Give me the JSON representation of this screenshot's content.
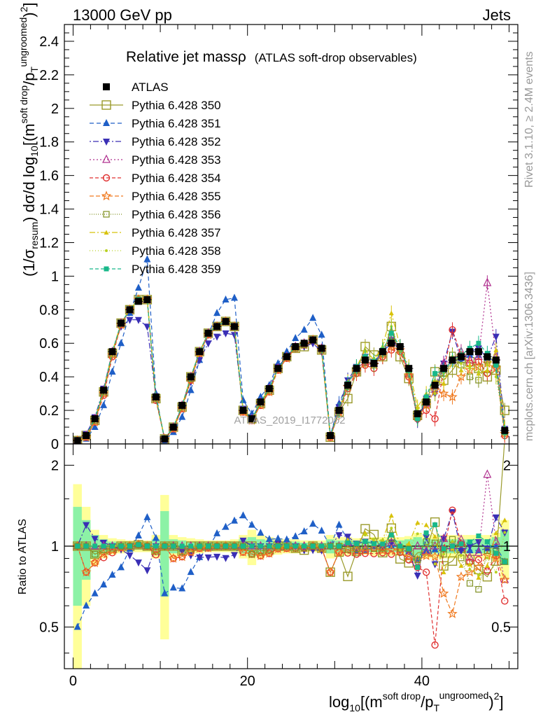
{
  "header": {
    "left": "13000 GeV pp",
    "right": "Jets"
  },
  "side_labels": {
    "rivet": "Rivet 3.1.10, ≥ 2.4M events",
    "mcplots": "mcplots.cern.ch [arXiv:1306.3436]"
  },
  "watermark": "ATLAS_2019_I1772062",
  "chart_data": [
    {
      "type": "line",
      "title": "Relative jet massρ",
      "subtitle": "(ATLAS soft-drop observables)",
      "ylabel_html": "(1/σresum) dσ/d log10[(m soft drop / pT ungroomed)2]",
      "xlim": [
        -1,
        51
      ],
      "ylim": [
        0,
        2.5
      ],
      "yticks": [
        0,
        0.2,
        0.4,
        0.6,
        0.8,
        1,
        1.2,
        1.4,
        1.6,
        1.8,
        2,
        2.2,
        2.4
      ],
      "ytick_labels": [
        "0",
        "0.2",
        "0.4",
        "0.6",
        "0.8",
        "1",
        "1.2",
        "1.4",
        "1.6",
        "1.8",
        "2",
        "2.2",
        "2.4"
      ],
      "legend_position": "top-left",
      "x": [
        0.5,
        1.5,
        2.5,
        3.5,
        4.5,
        5.5,
        6.5,
        7.5,
        8.5,
        9.5,
        10.5,
        11.5,
        12.5,
        13.5,
        14.5,
        15.5,
        16.5,
        17.5,
        18.5,
        19.5,
        20.5,
        21.5,
        22.5,
        23.5,
        24.5,
        25.5,
        26.5,
        27.5,
        28.5,
        29.5,
        30.5,
        31.5,
        32.5,
        33.5,
        34.5,
        35.5,
        36.5,
        37.5,
        38.5,
        39.5,
        40.5,
        41.5,
        42.5,
        43.5,
        44.5,
        45.5,
        46.5,
        47.5,
        48.5,
        49.5
      ],
      "series": [
        {
          "name": "ATLAS",
          "color": "#000000",
          "marker": "square-filled",
          "dash": "none",
          "values": [
            0.02,
            0.05,
            0.15,
            0.32,
            0.55,
            0.72,
            0.8,
            0.85,
            0.86,
            0.28,
            0.03,
            0.1,
            0.23,
            0.4,
            0.55,
            0.66,
            0.7,
            0.73,
            0.7,
            0.2,
            0.15,
            0.25,
            0.33,
            0.45,
            0.52,
            0.58,
            0.6,
            0.62,
            0.57,
            0.05,
            0.2,
            0.35,
            0.45,
            0.5,
            0.48,
            0.55,
            0.6,
            0.58,
            0.45,
            0.18,
            0.25,
            0.35,
            0.45,
            0.5,
            0.52,
            0.55,
            0.55,
            0.52,
            0.5,
            0.08
          ]
        },
        {
          "name": "Pythia 6.428 350",
          "color": "#9a9a2b",
          "marker": "square-open",
          "dash": "none",
          "values": [
            0.02,
            0.05,
            0.14,
            0.31,
            0.54,
            0.72,
            0.8,
            0.86,
            0.86,
            0.27,
            0.03,
            0.1,
            0.22,
            0.4,
            0.55,
            0.66,
            0.7,
            0.73,
            0.7,
            0.2,
            0.15,
            0.24,
            0.32,
            0.45,
            0.52,
            0.57,
            0.58,
            0.62,
            0.56,
            0.04,
            0.19,
            0.27,
            0.43,
            0.58,
            0.53,
            0.52,
            0.7,
            0.52,
            0.39,
            0.17,
            0.24,
            0.43,
            0.38,
            0.44,
            0.51,
            0.49,
            0.45,
            0.4,
            0.44,
            0.2
          ]
        },
        {
          "name": "Pythia 6.428 351",
          "color": "#1f5fc7",
          "marker": "triangle-filled",
          "dash": "6,4",
          "values": [
            0.01,
            0.03,
            0.1,
            0.23,
            0.43,
            0.6,
            0.78,
            0.93,
            1.1,
            0.3,
            0.02,
            0.07,
            0.16,
            0.32,
            0.5,
            0.65,
            0.78,
            0.86,
            0.87,
            0.26,
            0.18,
            0.28,
            0.35,
            0.48,
            0.55,
            0.63,
            0.68,
            0.75,
            0.65,
            0.05,
            0.24,
            0.37,
            0.43,
            0.48,
            0.48,
            0.55,
            0.6,
            0.58,
            0.43,
            0.16,
            0.24,
            0.34,
            0.44,
            0.49,
            0.51,
            0.53,
            0.53,
            0.51,
            0.5,
            0.07
          ]
        },
        {
          "name": "Pythia 6.428 352",
          "color": "#3a2fb5",
          "marker": "triangle-down-filled",
          "dash": "2,3,8,3",
          "values": [
            0.02,
            0.06,
            0.16,
            0.33,
            0.55,
            0.7,
            0.74,
            0.74,
            0.7,
            0.28,
            0.03,
            0.1,
            0.22,
            0.37,
            0.5,
            0.6,
            0.64,
            0.66,
            0.65,
            0.21,
            0.15,
            0.25,
            0.33,
            0.46,
            0.52,
            0.58,
            0.58,
            0.6,
            0.55,
            0.05,
            0.22,
            0.38,
            0.46,
            0.52,
            0.49,
            0.55,
            0.62,
            0.56,
            0.43,
            0.14,
            0.27,
            0.3,
            0.48,
            0.67,
            0.5,
            0.55,
            0.57,
            0.51,
            0.64,
            0.09
          ]
        },
        {
          "name": "Pythia 6.428 353",
          "color": "#b0308f",
          "marker": "triangle-open",
          "dash": "2,3",
          "values": [
            0.02,
            0.05,
            0.15,
            0.32,
            0.55,
            0.72,
            0.8,
            0.86,
            0.86,
            0.28,
            0.03,
            0.1,
            0.23,
            0.4,
            0.55,
            0.66,
            0.7,
            0.73,
            0.7,
            0.2,
            0.15,
            0.25,
            0.33,
            0.45,
            0.52,
            0.58,
            0.6,
            0.62,
            0.57,
            0.05,
            0.2,
            0.36,
            0.45,
            0.49,
            0.48,
            0.56,
            0.62,
            0.58,
            0.42,
            0.18,
            0.24,
            0.35,
            0.48,
            0.5,
            0.55,
            0.5,
            0.52,
            0.96,
            0.52,
            0.06
          ]
        },
        {
          "name": "Pythia 6.428 354",
          "color": "#e03030",
          "marker": "circle-open",
          "dash": "5,3",
          "values": [
            0.02,
            0.04,
            0.13,
            0.29,
            0.52,
            0.71,
            0.8,
            0.86,
            0.86,
            0.26,
            0.03,
            0.09,
            0.21,
            0.38,
            0.54,
            0.65,
            0.7,
            0.73,
            0.7,
            0.19,
            0.14,
            0.23,
            0.31,
            0.44,
            0.51,
            0.57,
            0.59,
            0.62,
            0.56,
            0.04,
            0.19,
            0.33,
            0.42,
            0.47,
            0.45,
            0.52,
            0.56,
            0.55,
            0.4,
            0.15,
            0.2,
            0.15,
            0.44,
            0.68,
            0.53,
            0.48,
            0.49,
            0.42,
            0.46,
            0.05
          ]
        },
        {
          "name": "Pythia 6.428 355",
          "color": "#f07a20",
          "marker": "star",
          "dash": "6,3",
          "values": [
            0.02,
            0.04,
            0.13,
            0.3,
            0.53,
            0.71,
            0.8,
            0.86,
            0.86,
            0.27,
            0.03,
            0.09,
            0.21,
            0.38,
            0.54,
            0.65,
            0.7,
            0.73,
            0.7,
            0.19,
            0.14,
            0.23,
            0.31,
            0.44,
            0.51,
            0.57,
            0.59,
            0.62,
            0.56,
            0.04,
            0.19,
            0.34,
            0.43,
            0.48,
            0.47,
            0.53,
            0.58,
            0.56,
            0.41,
            0.16,
            0.23,
            0.32,
            0.3,
            0.28,
            0.4,
            0.44,
            0.46,
            0.48,
            0.45,
            0.06
          ]
        },
        {
          "name": "Pythia 6.428 356",
          "color": "#7f8f1f",
          "marker": "square-open-small",
          "dash": "1,2",
          "values": [
            0.02,
            0.05,
            0.14,
            0.31,
            0.54,
            0.72,
            0.8,
            0.86,
            0.86,
            0.27,
            0.03,
            0.1,
            0.22,
            0.39,
            0.55,
            0.66,
            0.7,
            0.73,
            0.7,
            0.2,
            0.14,
            0.24,
            0.32,
            0.45,
            0.52,
            0.57,
            0.59,
            0.62,
            0.56,
            0.05,
            0.2,
            0.34,
            0.44,
            0.5,
            0.47,
            0.54,
            0.64,
            0.57,
            0.44,
            0.16,
            0.26,
            0.36,
            0.42,
            0.53,
            0.47,
            0.4,
            0.38,
            0.5,
            0.48,
            0.07
          ]
        },
        {
          "name": "Pythia 6.428 357",
          "color": "#d8c20a",
          "marker": "tri-small",
          "dash": "8,3,2,3",
          "values": [
            0.02,
            0.05,
            0.15,
            0.32,
            0.55,
            0.72,
            0.8,
            0.86,
            0.86,
            0.28,
            0.03,
            0.1,
            0.23,
            0.4,
            0.55,
            0.66,
            0.7,
            0.73,
            0.7,
            0.2,
            0.15,
            0.25,
            0.33,
            0.45,
            0.52,
            0.58,
            0.6,
            0.62,
            0.57,
            0.05,
            0.2,
            0.37,
            0.46,
            0.56,
            0.5,
            0.58,
            0.78,
            0.58,
            0.46,
            0.22,
            0.3,
            0.38,
            0.36,
            0.49,
            0.44,
            0.47,
            0.42,
            0.44,
            0.56,
            0.1
          ]
        },
        {
          "name": "Pythia 6.428 358",
          "color": "#b8d020",
          "marker": "dot",
          "dash": "1,3",
          "values": [
            0.02,
            0.05,
            0.15,
            0.32,
            0.55,
            0.72,
            0.8,
            0.86,
            0.86,
            0.28,
            0.03,
            0.1,
            0.23,
            0.4,
            0.55,
            0.66,
            0.7,
            0.73,
            0.7,
            0.2,
            0.15,
            0.25,
            0.33,
            0.45,
            0.52,
            0.58,
            0.6,
            0.62,
            0.57,
            0.05,
            0.2,
            0.36,
            0.46,
            0.55,
            0.51,
            0.58,
            0.7,
            0.56,
            0.44,
            0.2,
            0.28,
            0.3,
            0.42,
            0.52,
            0.48,
            0.45,
            0.43,
            0.47,
            0.4,
            0.09
          ]
        },
        {
          "name": "Pythia 6.428 359",
          "color": "#18b88a",
          "marker": "square-small-filled",
          "dash": "5,3",
          "values": [
            0.02,
            0.05,
            0.15,
            0.32,
            0.55,
            0.72,
            0.8,
            0.86,
            0.86,
            0.28,
            0.03,
            0.1,
            0.23,
            0.4,
            0.55,
            0.66,
            0.7,
            0.73,
            0.7,
            0.2,
            0.15,
            0.25,
            0.33,
            0.45,
            0.52,
            0.58,
            0.6,
            0.62,
            0.57,
            0.05,
            0.2,
            0.36,
            0.46,
            0.52,
            0.49,
            0.56,
            0.66,
            0.58,
            0.44,
            0.15,
            0.28,
            0.42,
            0.44,
            0.5,
            0.53,
            0.57,
            0.6,
            0.54,
            0.47,
            0.07
          ]
        }
      ]
    },
    {
      "type": "line",
      "ylabel": "Ratio to ATLAS",
      "xlabel_html": "log10[(m soft drop / pT ungroomed)2]",
      "xlim": [
        -1,
        51
      ],
      "ylim": [
        0.35,
        2.4
      ],
      "log_y": true,
      "xticks": [
        0,
        20,
        40
      ],
      "xtick_labels": [
        "0",
        "20",
        "40"
      ],
      "yticks": [
        0.5,
        1,
        2
      ],
      "ytick_labels": [
        "0.5",
        "1",
        "2"
      ],
      "reference_line": 1,
      "band_outer": [
        0.7,
        0.4,
        0.15,
        0.1,
        0.07,
        0.06,
        0.05,
        0.05,
        0.05,
        0.1,
        0.55,
        0.1,
        0.08,
        0.07,
        0.06,
        0.05,
        0.05,
        0.05,
        0.06,
        0.1,
        0.15,
        0.1,
        0.08,
        0.07,
        0.06,
        0.06,
        0.05,
        0.05,
        0.05,
        0.1,
        0.08,
        0.08,
        0.07,
        0.07,
        0.08,
        0.08,
        0.08,
        0.08,
        0.09,
        0.12,
        0.1,
        0.1,
        0.1,
        0.1,
        0.1,
        0.1,
        0.1,
        0.1,
        0.12,
        0.25
      ],
      "band_inner": [
        0.4,
        0.25,
        0.1,
        0.06,
        0.04,
        0.03,
        0.03,
        0.03,
        0.03,
        0.06,
        0.35,
        0.06,
        0.05,
        0.04,
        0.04,
        0.03,
        0.03,
        0.03,
        0.04,
        0.06,
        0.08,
        0.06,
        0.05,
        0.04,
        0.04,
        0.04,
        0.03,
        0.03,
        0.03,
        0.06,
        0.05,
        0.05,
        0.05,
        0.05,
        0.05,
        0.05,
        0.05,
        0.05,
        0.06,
        0.08,
        0.06,
        0.06,
        0.06,
        0.06,
        0.06,
        0.06,
        0.06,
        0.06,
        0.08,
        0.15
      ]
    }
  ]
}
